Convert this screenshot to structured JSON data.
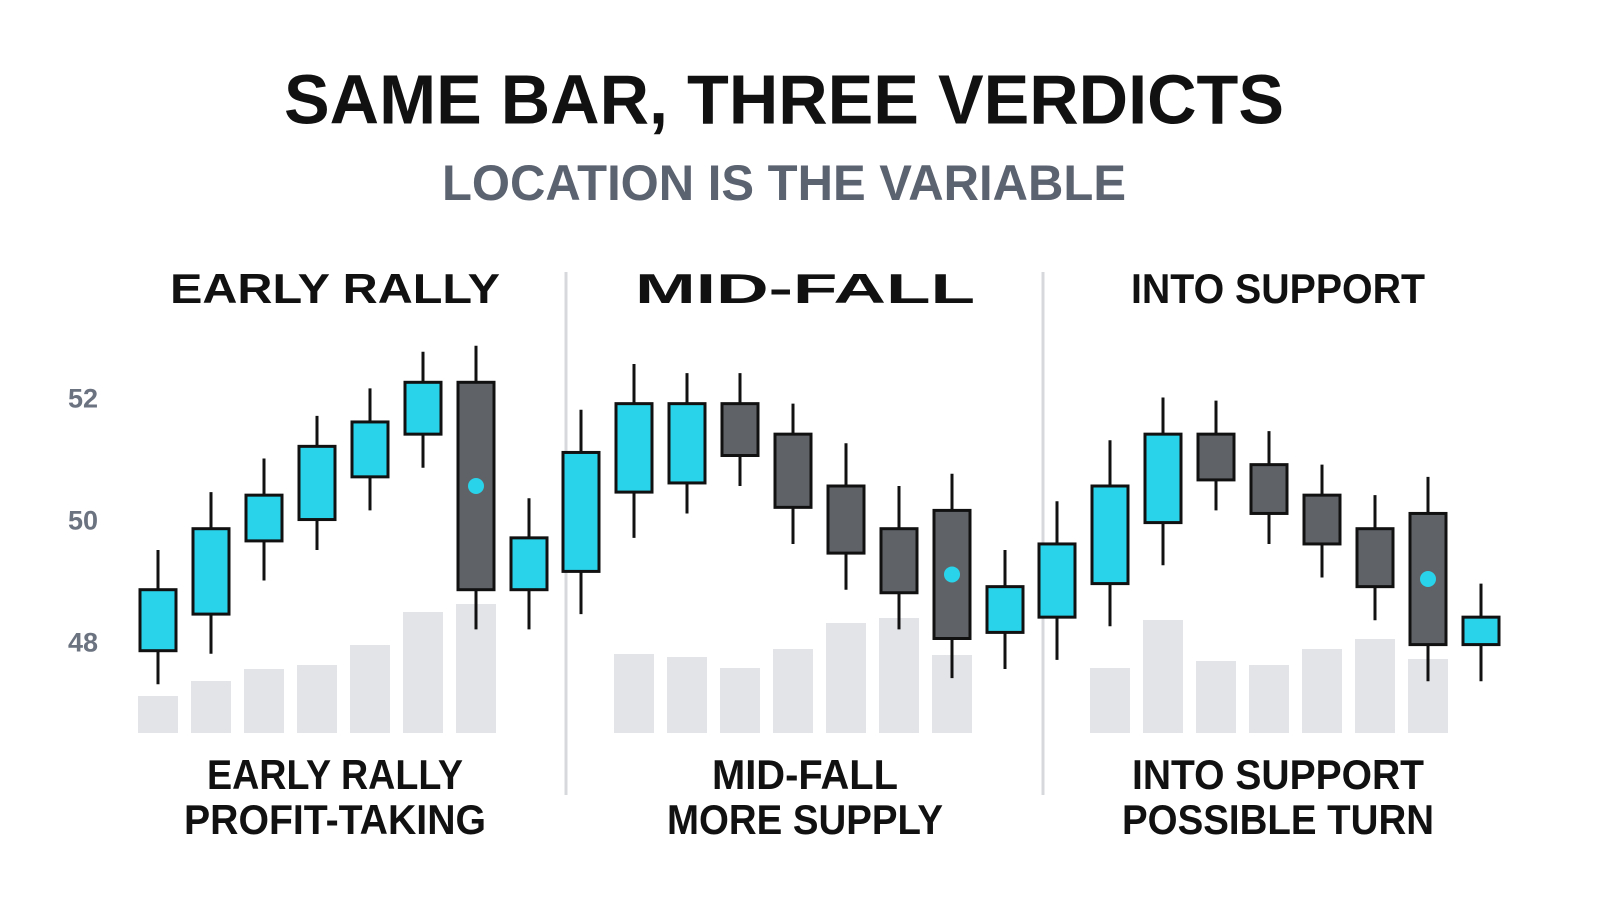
{
  "title": "SAME BAR, THREE VERDICTS",
  "subtitle": "LOCATION IS THE VARIABLE",
  "chart_data": [
    {
      "type": "candlestick",
      "title": "EARLY RALLY",
      "caption": [
        "EARLY RALLY",
        "PROFIT-TAKING"
      ],
      "ylim": [
        46.6,
        53.2
      ],
      "yticks": [
        48,
        50,
        52
      ],
      "up_color": "#29d3e9",
      "down_color": "#5f6368",
      "volume_color": "#e2e4e7",
      "highlight": 6,
      "open": [
        47.9,
        48.5,
        49.7,
        50.05,
        50.75,
        51.45,
        52.3,
        48.9
      ],
      "high": [
        49.55,
        50.5,
        51.05,
        51.75,
        52.2,
        52.8,
        52.9,
        50.4
      ],
      "low": [
        47.35,
        47.85,
        49.05,
        49.55,
        50.2,
        50.9,
        48.25,
        48.25
      ],
      "close": [
        48.9,
        49.9,
        50.45,
        51.25,
        51.65,
        52.3,
        48.9,
        49.75
      ],
      "volume": [
        37,
        52,
        64,
        68,
        88,
        121,
        129,
        null
      ]
    },
    {
      "type": "candlestick",
      "title": "MID-FALL",
      "caption": [
        "MID-FALL",
        "MORE SUPPLY"
      ],
      "ylim": [
        46.6,
        53.2
      ],
      "up_color": "#29d3e9",
      "down_color": "#5f6368",
      "volume_color": "#e2e4e7",
      "highlight": 7,
      "open": [
        49.2,
        50.5,
        50.65,
        51.95,
        51.45,
        50.6,
        49.9,
        50.2,
        48.2
      ],
      "high": [
        51.85,
        52.6,
        52.45,
        52.45,
        51.95,
        51.3,
        50.6,
        50.8,
        49.55
      ],
      "low": [
        48.5,
        49.75,
        50.15,
        50.6,
        49.65,
        48.9,
        48.25,
        47.45,
        47.6
      ],
      "close": [
        51.15,
        51.95,
        51.95,
        51.1,
        50.25,
        49.5,
        48.85,
        48.1,
        48.95
      ],
      "volume": [
        null,
        79,
        76,
        65,
        84,
        110,
        115,
        78,
        null
      ]
    },
    {
      "type": "candlestick",
      "title": "INTO SUPPORT",
      "caption": [
        "INTO SUPPORT",
        "POSSIBLE TURN"
      ],
      "ylim": [
        46.6,
        53.2
      ],
      "up_color": "#29d3e9",
      "down_color": "#5f6368",
      "volume_color": "#e2e4e7",
      "highlight": 7,
      "open": [
        48.45,
        49.0,
        50.0,
        51.45,
        50.95,
        50.45,
        49.9,
        50.15,
        48.0
      ],
      "high": [
        50.35,
        51.35,
        52.05,
        52.0,
        51.5,
        50.95,
        50.45,
        50.75,
        49.0
      ],
      "low": [
        47.75,
        48.3,
        49.3,
        50.2,
        49.65,
        49.1,
        48.4,
        47.4,
        47.4
      ],
      "close": [
        49.65,
        50.6,
        51.45,
        50.7,
        50.15,
        49.65,
        48.95,
        48.0,
        48.45
      ],
      "volume": [
        null,
        65,
        113,
        72,
        68,
        84,
        94,
        74,
        null
      ]
    }
  ]
}
